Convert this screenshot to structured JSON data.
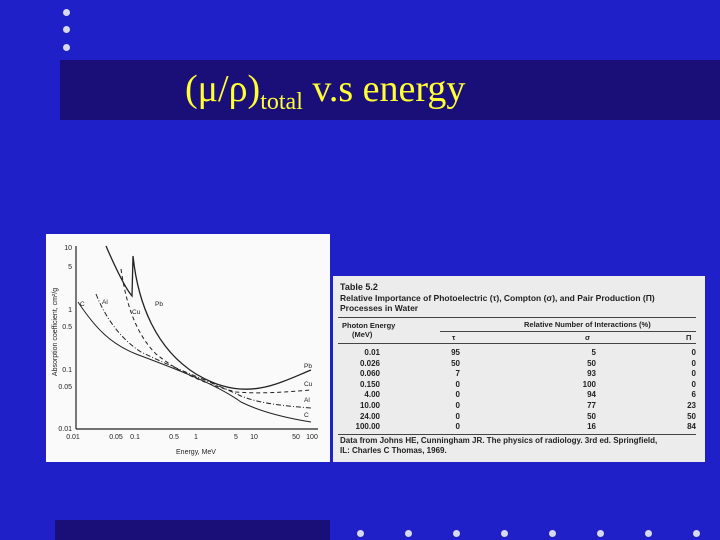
{
  "title": {
    "mu_rho": "(μ/ρ)",
    "subscript": "total",
    "rest": "v.s energy"
  },
  "colors": {
    "background": "#2020c8",
    "band": "#1a0e78",
    "title": "#ffff33"
  },
  "graph": {
    "ylabel": "Absorption coefficient, cm²/g",
    "xlabel": "Energy, MeV",
    "y_ticks": [
      "10",
      "5",
      "1",
      "0.5",
      "0.1",
      "0.05",
      "0.01"
    ],
    "x_ticks": [
      "0.01",
      "0.05",
      "0.1",
      "0.5",
      "1",
      "5",
      "10",
      "50",
      "100"
    ],
    "curve_labels": {
      "c_left": "C",
      "al_left": "Al",
      "cu_left": "Cu",
      "pb_left": "Pb",
      "pb_right": "Pb",
      "cu_right": "Cu",
      "al_right": "Al",
      "c_right": "C"
    }
  },
  "table": {
    "name": "Table 5.2",
    "caption_line1": "Relative Importance of Photoelectric (τ), Compton (σ), and Pair Production (Π)",
    "caption_line2": "Processes in Water",
    "col1_header_line1": "Photon Energy",
    "col1_header_line2": "(MeV)",
    "group_header": "Relative Number of Interactions (%)",
    "sym_tau": "τ",
    "sym_sigma": "σ",
    "sym_pi": "Π",
    "energy": "0.01\n0.026\n0.060\n0.150\n4.00\n10.00\n24.00\n100.00",
    "tau": "95\n50\n7\n0\n0\n0\n0\n0",
    "sigma": "5\n50\n93\n100\n94\n77\n50\n16",
    "pi": "0\n0\n0\n0\n6\n23\n50\n84",
    "source_line1": "Data from Johns HE, Cunningham JR. The physics of radiology. 3rd ed. Springfield,",
    "source_line2": "IL: Charles C Thomas, 1969."
  }
}
